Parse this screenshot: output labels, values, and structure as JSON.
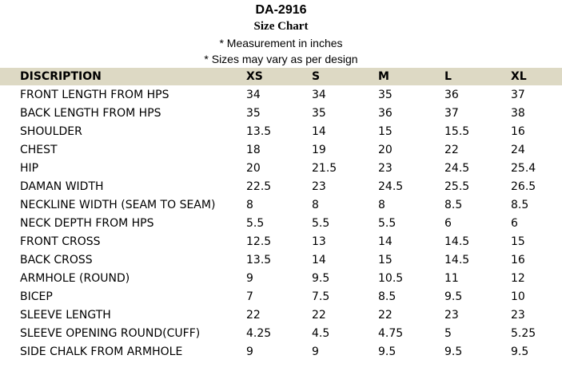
{
  "title": "DA-2916",
  "subtitle": "Size Chart",
  "notes": [
    "* Measurement in inches",
    "* Sizes may vary as per design"
  ],
  "columns": [
    "DISCRIPTION",
    "XS",
    "S",
    "M",
    "L",
    "XL"
  ],
  "rows": [
    [
      "FRONT LENGTH FROM HPS",
      "34",
      "34",
      "35",
      "36",
      "37"
    ],
    [
      "BACK LENGTH FROM HPS",
      "35",
      "35",
      "36",
      "37",
      "38"
    ],
    [
      "SHOULDER",
      "13.5",
      "14",
      "15",
      "15.5",
      "16"
    ],
    [
      "CHEST",
      "18",
      "19",
      "20",
      "22",
      "24"
    ],
    [
      "HIP",
      "20",
      "21.5",
      "23",
      "24.5",
      "25.4"
    ],
    [
      "DAMAN WIDTH",
      "22.5",
      "23",
      "24.5",
      "25.5",
      "26.5"
    ],
    [
      "NECKLINE WIDTH (SEAM TO SEAM)",
      "8",
      "8",
      "8",
      "8.5",
      "8.5"
    ],
    [
      "NECK DEPTH FROM HPS",
      "5.5",
      "5.5",
      "5.5",
      "6",
      "6"
    ],
    [
      "FRONT CROSS",
      "12.5",
      "13",
      "14",
      "14.5",
      "15"
    ],
    [
      "BACK CROSS",
      "13.5",
      "14",
      "15",
      "14.5",
      "16"
    ],
    [
      "ARMHOLE (ROUND)",
      "9",
      "9.5",
      "10.5",
      "11",
      "12"
    ],
    [
      "BICEP",
      "7",
      "7.5",
      "8.5",
      "9.5",
      "10"
    ],
    [
      "SLEEVE LENGTH",
      "22",
      "22",
      "22",
      "23",
      "23"
    ],
    [
      "SLEEVE OPENING ROUND(CUFF)",
      "4.25",
      "4.5",
      "4.75",
      "5",
      "5.25"
    ],
    [
      "SIDE CHALK FROM ARMHOLE",
      "9",
      "9",
      "9.5",
      "9.5",
      "9.5"
    ]
  ]
}
